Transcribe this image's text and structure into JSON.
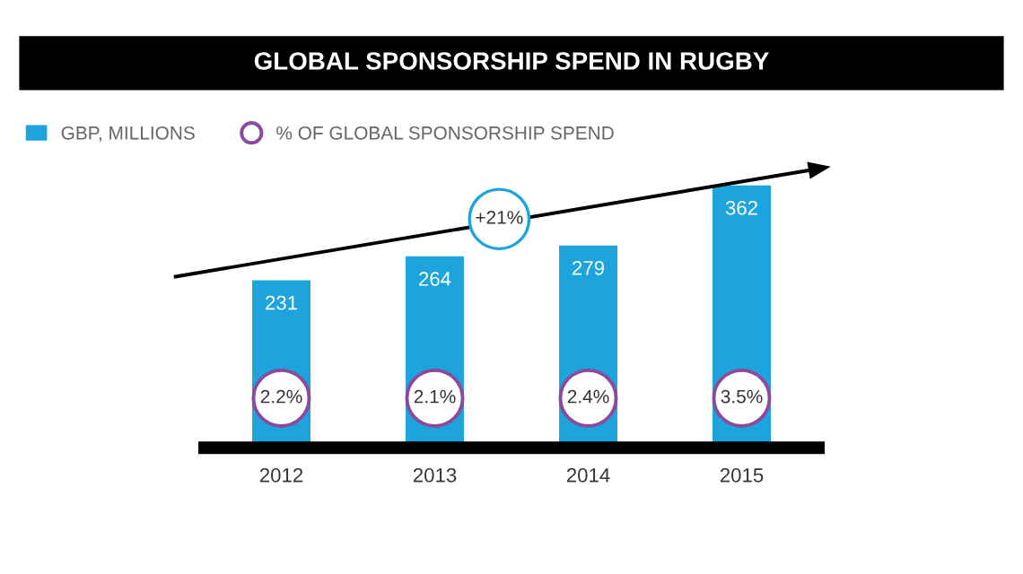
{
  "chart_data": {
    "type": "bar",
    "title": "GLOBAL SPONSORSHIP SPEND IN RUGBY",
    "categories": [
      "2012",
      "2013",
      "2014",
      "2015"
    ],
    "series": [
      {
        "name": "GBP, MILLIONS",
        "color": "#1ea4dc",
        "values": [
          231,
          264,
          279,
          362
        ]
      },
      {
        "name": "% OF GLOBAL SPONSORSHIP SPEND",
        "type": "scatter",
        "color": "#8b4a9c",
        "values": [
          null,
          null,
          null,
          null
        ]
      }
    ],
    "data_labels": true,
    "tick_labels": "x",
    "grid": false,
    "legend": "top left",
    "annotations": [
      "+21%",
      {
        "text": "2.2%",
        "x": "2012"
      },
      {
        "text": "2.1%",
        "x": "2013"
      },
      {
        "text": "2.4%",
        "x": "2014"
      },
      {
        "text": "3.5%",
        "x": "2015"
      }
    ]
  }
}
